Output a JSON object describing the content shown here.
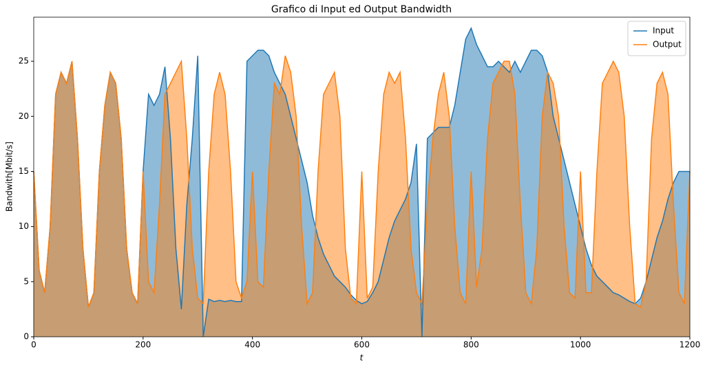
{
  "chart_data": {
    "type": "area",
    "title": "Grafico di Input ed Output Bandwidth",
    "x_label": "t",
    "y_label": "Bandwith[Mbit/s]",
    "x": [
      0,
      10,
      20,
      30,
      40,
      50,
      60,
      70,
      80,
      90,
      100,
      110,
      120,
      130,
      140,
      150,
      160,
      170,
      180,
      190,
      200,
      210,
      220,
      230,
      240,
      250,
      260,
      270,
      280,
      290,
      300,
      310,
      320,
      330,
      340,
      350,
      360,
      370,
      380,
      390,
      400,
      410,
      420,
      430,
      440,
      450,
      460,
      470,
      480,
      490,
      500,
      510,
      520,
      530,
      540,
      550,
      560,
      570,
      580,
      590,
      600,
      610,
      620,
      630,
      640,
      650,
      660,
      670,
      680,
      690,
      700,
      710,
      720,
      730,
      740,
      750,
      760,
      770,
      780,
      790,
      800,
      810,
      820,
      830,
      840,
      850,
      860,
      870,
      880,
      890,
      900,
      910,
      920,
      930,
      940,
      950,
      960,
      970,
      980,
      990,
      1000,
      1010,
      1020,
      1030,
      1040,
      1050,
      1060,
      1070,
      1080,
      1090,
      1100,
      1110,
      1120,
      1130,
      1140,
      1150,
      1160,
      1170,
      1180,
      1190,
      1200
    ],
    "series": [
      {
        "name": "Input",
        "color": "#1f77b4",
        "values": [
          15,
          6,
          4,
          10,
          22,
          24,
          23,
          25,
          18,
          8,
          2.7,
          4,
          15,
          21,
          24,
          23,
          18,
          8,
          4,
          3,
          15,
          22,
          21,
          22,
          24.5,
          18,
          8,
          2.5,
          12,
          18,
          25.5,
          0,
          3.4,
          3.2,
          3.3,
          3.2,
          3.3,
          3.2,
          3.2,
          25,
          25.5,
          26,
          26,
          25.5,
          24,
          23,
          22,
          20,
          18,
          16,
          14,
          11,
          9,
          7.5,
          6.5,
          5.5,
          5,
          4.5,
          3.8,
          3.3,
          3,
          3.2,
          4,
          5,
          7,
          9,
          10.5,
          11.5,
          12.5,
          14,
          17.5,
          0,
          18,
          18.5,
          19,
          19,
          19,
          21,
          24,
          27,
          28,
          26.5,
          25.5,
          24.5,
          24.5,
          25,
          24.5,
          24,
          25,
          24,
          25,
          26,
          26,
          25.5,
          24,
          20,
          18,
          16,
          14,
          12,
          10,
          8,
          6.5,
          5.5,
          5,
          4.5,
          4,
          3.8,
          3.5,
          3.2,
          3,
          3.5,
          5,
          7,
          9,
          10.5,
          12.5,
          14,
          15,
          15,
          15
        ]
      },
      {
        "name": "Output",
        "color": "#ff7f0e",
        "values": [
          15,
          6,
          4,
          10,
          22,
          24,
          23,
          25,
          18,
          8,
          2.7,
          4,
          15,
          21,
          24,
          23,
          18,
          8,
          4,
          3,
          15,
          5,
          4,
          12,
          22,
          23,
          24,
          25,
          18,
          8,
          3.5,
          3,
          15,
          22,
          24,
          22,
          15,
          5,
          3.5,
          5,
          15,
          5,
          4.5,
          15,
          23,
          22,
          25.5,
          24,
          20,
          10,
          3,
          4,
          15,
          22,
          23,
          24,
          20,
          8,
          3.5,
          3,
          15,
          3.5,
          4.5,
          15,
          22,
          24,
          23,
          24,
          18,
          8,
          4,
          3,
          12,
          18,
          22,
          24,
          20,
          10,
          4,
          3,
          15,
          4.5,
          8,
          18,
          23,
          24,
          25,
          25,
          22,
          12,
          4,
          3,
          8,
          20,
          24,
          23,
          20,
          10,
          4,
          3.5,
          15,
          4,
          4,
          15,
          23,
          24,
          25,
          24,
          20,
          10,
          3,
          2.7,
          5,
          18,
          23,
          24,
          22,
          12,
          4,
          3,
          15
        ]
      }
    ],
    "xlim": [
      0,
      1200
    ],
    "xticks": [
      0,
      200,
      400,
      600,
      800,
      1000,
      1200
    ],
    "ylim": [
      0,
      29
    ],
    "yticks": [
      0,
      5,
      10,
      15,
      20,
      25
    ],
    "legend": "upper right",
    "fill_alpha": 0.5
  }
}
